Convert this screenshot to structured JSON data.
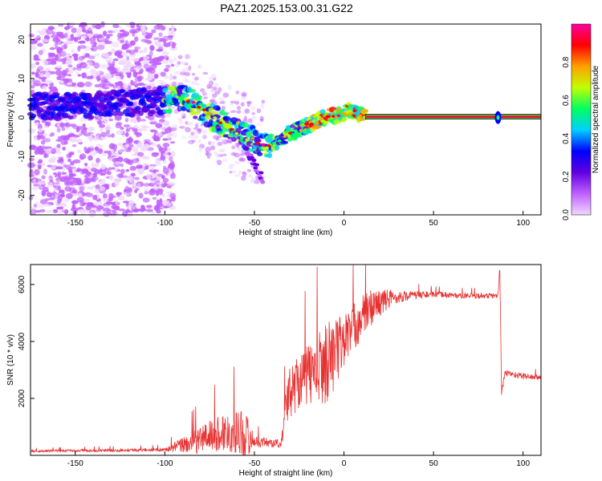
{
  "title": "PAZ1.2025.153.00.31.G22",
  "chart_data": [
    {
      "type": "heatmap",
      "xlabel": "Height of straight line (km)",
      "ylabel": "Frequency (Hz)",
      "xlim": [
        -175,
        110
      ],
      "ylim": [
        -25,
        24
      ],
      "x_ticks": [
        -150,
        -100,
        -50,
        0,
        50,
        100
      ],
      "y_ticks": [
        -20,
        -10,
        0,
        10,
        20
      ],
      "colorbar": {
        "label": "Normalized spectral amplitude",
        "range": [
          0,
          1
        ],
        "ticks": [
          0.0,
          0.2,
          0.4,
          0.6,
          0.8
        ],
        "colormap": [
          "#f0d8ff",
          "#c060ff",
          "#6000e0",
          "#0000ff",
          "#00d0ff",
          "#00ff60",
          "#c0ff00",
          "#ffa000",
          "#ff0000",
          "#ff00a0"
        ]
      },
      "ridge": {
        "x": [
          -175,
          -150,
          -130,
          -110,
          -100,
          -88,
          -80,
          -70,
          -60,
          -50,
          -40,
          -30,
          -20,
          -10,
          0,
          3,
          12,
          110
        ],
        "y": [
          3,
          3,
          3.5,
          4,
          4.5,
          5,
          2,
          -1,
          -4,
          -6,
          -7,
          -4,
          -2,
          0,
          1,
          2,
          0.2,
          0.2
        ]
      },
      "tail_band": {
        "from_x": 12,
        "to_x": 110,
        "freq": 0.2,
        "colors": [
          "#00c000",
          "#ff0000",
          "#ff0080"
        ]
      },
      "spur": {
        "x": [
          -55,
          -45
        ],
        "y": [
          -8,
          -16
        ]
      },
      "isolated_blob": {
        "x": 86,
        "y": 0
      }
    },
    {
      "type": "line",
      "xlabel": "Height of straight line (km)",
      "ylabel": "SNR (10 * v/v)",
      "xlim": [
        -175,
        110
      ],
      "ylim": [
        0,
        6700
      ],
      "x_ticks": [
        -150,
        -100,
        -50,
        0,
        50,
        100
      ],
      "y_ticks": [
        2000,
        4000,
        6000
      ],
      "color": "#e83030",
      "envelope": {
        "x": [
          -175,
          -130,
          -100,
          -85,
          -75,
          -60,
          -50,
          -35,
          -32,
          -25,
          -15,
          -5,
          5,
          15,
          25,
          35,
          45,
          55,
          65,
          75,
          86,
          87,
          88,
          90,
          100,
          110
        ],
        "y": [
          150,
          180,
          200,
          450,
          700,
          900,
          500,
          400,
          2000,
          2700,
          3000,
          3600,
          4500,
          5200,
          5500,
          5600,
          5650,
          5650,
          5600,
          5600,
          5600,
          6600,
          2200,
          2900,
          2780,
          2730
        ]
      },
      "noise_amp": {
        "x": [
          -175,
          -100,
          -80,
          -55,
          -50,
          -35,
          -32,
          -20,
          -10,
          0,
          10,
          20,
          30,
          50,
          85,
          90,
          110
        ],
        "y": [
          40,
          60,
          500,
          900,
          200,
          150,
          900,
          1100,
          1500,
          1000,
          800,
          500,
          200,
          100,
          100,
          120,
          100
        ]
      }
    }
  ]
}
